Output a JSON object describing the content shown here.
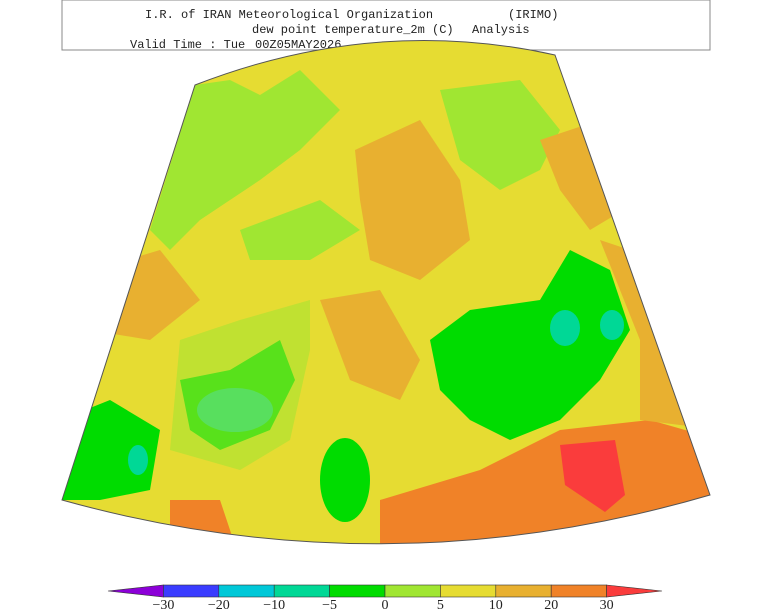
{
  "header": {
    "title": "I.R. of IRAN Meteorological Organization",
    "agency": "(IRIMO)",
    "field": "dew point temperature_2m (C)",
    "kind": "Analysis",
    "valid_label": "Valid Time : Tue",
    "valid_time": "00Z05MAY2026"
  },
  "colorbar": {
    "colors": [
      "#8c00d8",
      "#3a3cff",
      "#00c8d8",
      "#00d896",
      "#00dc00",
      "#a0e632",
      "#e6dc32",
      "#e8b030",
      "#f08228",
      "#fa3c3c"
    ],
    "ticks": [
      "−30",
      "−20",
      "−10",
      "−5",
      "0",
      "5",
      "10",
      "20",
      "30"
    ]
  }
}
